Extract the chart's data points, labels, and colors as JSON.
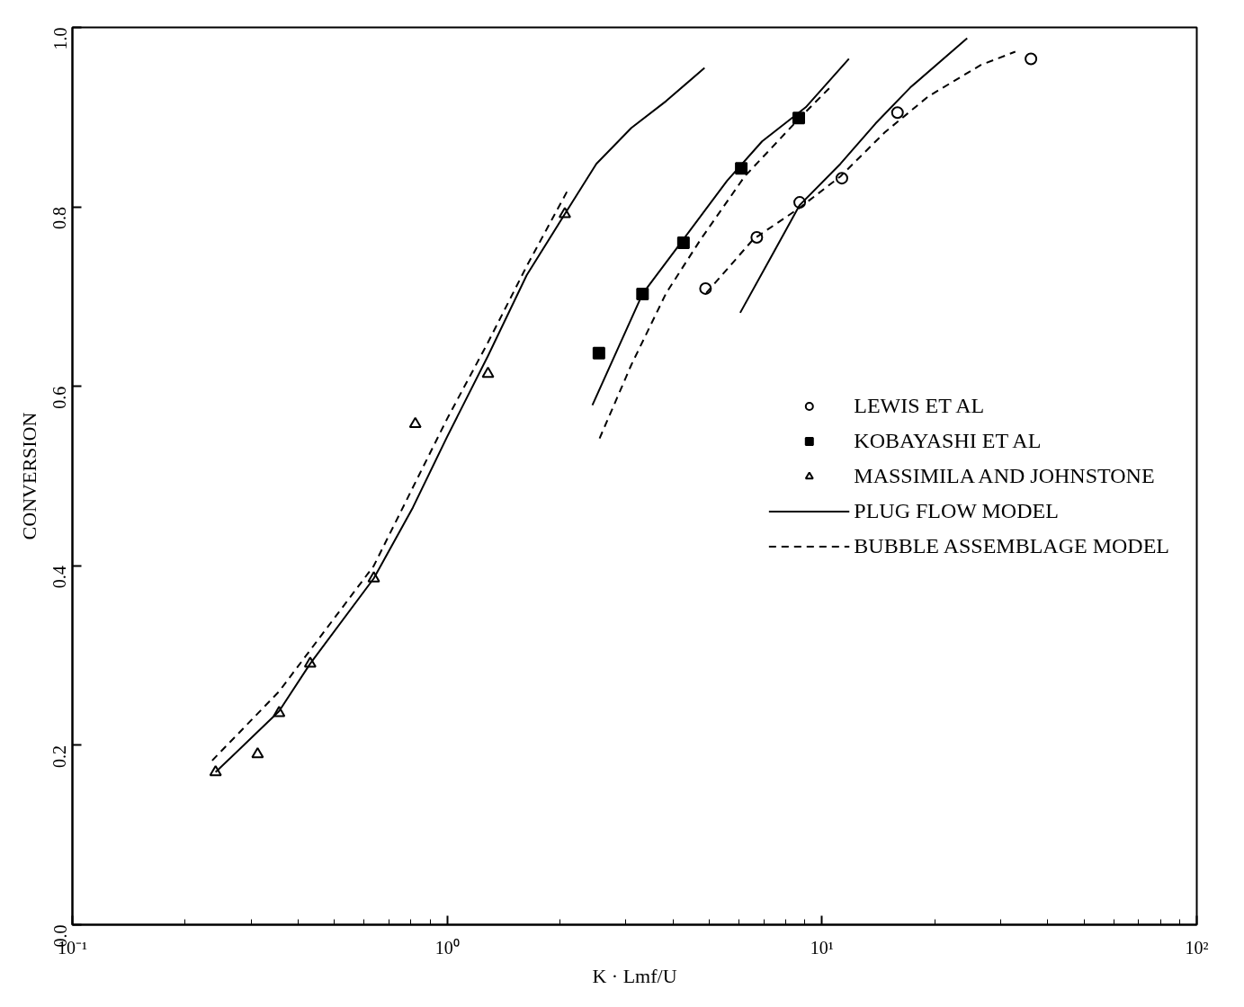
{
  "chart_data": {
    "type": "scatter",
    "xlabel": "K · Lmf/U",
    "ylabel": "CONVERSION",
    "log": "x",
    "grid": false,
    "legend": "right",
    "xlim": [
      0.1,
      100
    ],
    "ylim": [
      0,
      1
    ],
    "xticks": [
      {
        "value": 0.1,
        "label": "10⁻¹"
      },
      {
        "value": 1,
        "label": "10⁰"
      },
      {
        "value": 10,
        "label": "10¹"
      },
      {
        "value": 100,
        "label": "10²"
      }
    ],
    "yticks": [
      {
        "value": 0,
        "label": "0.0"
      },
      {
        "value": 0.2,
        "label": "0.2"
      },
      {
        "value": 0.4,
        "label": "0.4"
      },
      {
        "value": 0.6,
        "label": "0.6"
      },
      {
        "value": 0.8,
        "label": "0.8"
      },
      {
        "value": 1,
        "label": "1.0"
      }
    ],
    "series": [
      {
        "name": "LEWIS ET AL",
        "marker": "circle",
        "color": "#000000",
        "x": [
          4.89,
          6.7,
          8.72,
          11.3,
          15.9,
          36.1
        ],
        "values": [
          0.709,
          0.766,
          0.805,
          0.832,
          0.905,
          0.965
        ]
      },
      {
        "name": "KOBAYASHI ET AL",
        "marker": "square",
        "color": "#000000",
        "x": [
          2.54,
          3.32,
          4.27,
          6.09,
          8.67
        ],
        "values": [
          0.637,
          0.703,
          0.76,
          0.843,
          0.899
        ]
      },
      {
        "name": "MASSIMILA AND JOHNSTONE",
        "marker": "triangle",
        "color": "#000000",
        "x": [
          0.241,
          0.312,
          0.356,
          0.431,
          0.637,
          0.822,
          1.285,
          2.06
        ],
        "values": [
          0.17,
          0.19,
          0.236,
          0.291,
          0.386,
          0.558,
          0.614,
          0.792
        ]
      },
      {
        "name": "PLUG FLOW MODEL",
        "type": "line",
        "line_style": "solid",
        "color": "#000000",
        "x": [
          0.241,
          0.356,
          0.431,
          0.637,
          0.81,
          1.0,
          1.285,
          1.63,
          2.06,
          2.5,
          3.1,
          3.84,
          4.86
        ],
        "values": [
          0.17,
          0.238,
          0.291,
          0.386,
          0.465,
          0.544,
          0.634,
          0.724,
          0.792,
          0.848,
          0.888,
          0.918,
          0.955
        ]
      },
      {
        "name": "BUBBLE ASSEMBLAGE MODEL",
        "type": "line",
        "line_style": "dashed",
        "color": "#000000",
        "x": [
          0.236,
          0.356,
          0.637,
          1.0,
          1.285,
          1.63,
          2.1
        ],
        "values": [
          0.183,
          0.26,
          0.4,
          0.564,
          0.649,
          0.734,
          0.819
        ]
      },
      {
        "type": "line",
        "line_style": "solid",
        "color": "#000000",
        "x": [
          2.44,
          3.32,
          4.27,
          5.58,
          6.92,
          9.05,
          11.8
        ],
        "values": [
          0.579,
          0.703,
          0.764,
          0.829,
          0.873,
          0.911,
          0.965
        ]
      },
      {
        "type": "line",
        "line_style": "dashed",
        "color": "#000000",
        "x": [
          2.55,
          3.1,
          3.84,
          4.75,
          6.22,
          8.67,
          10.5
        ],
        "values": [
          0.542,
          0.624,
          0.704,
          0.764,
          0.834,
          0.898,
          0.933
        ]
      },
      {
        "type": "line",
        "line_style": "solid",
        "color": "#000000",
        "x": [
          6.05,
          7.31,
          8.72,
          11.2,
          13.9,
          17.2,
          24.4
        ],
        "values": [
          0.682,
          0.744,
          0.802,
          0.848,
          0.893,
          0.933,
          0.988
        ]
      },
      {
        "type": "line",
        "line_style": "dashed",
        "color": "#000000",
        "x": [
          4.91,
          6.56,
          8.72,
          11.2,
          14.7,
          19.2,
          26.5,
          32.8
        ],
        "values": [
          0.704,
          0.764,
          0.799,
          0.834,
          0.883,
          0.923,
          0.958,
          0.973
        ]
      }
    ]
  }
}
